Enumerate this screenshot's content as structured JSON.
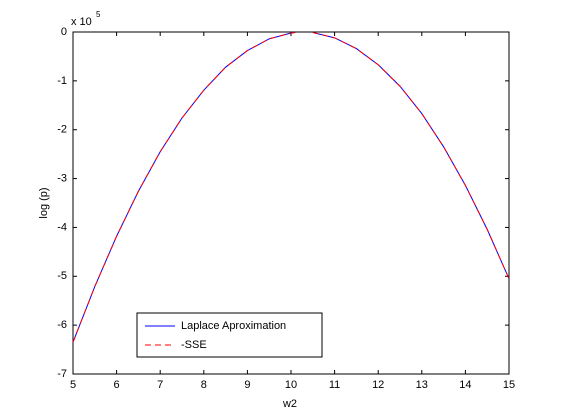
{
  "chart_data": {
    "type": "line",
    "xlabel": "w2",
    "ylabel": "log (p)",
    "y_multiplier_base": "x 10",
    "y_multiplier_exponent": "5",
    "x": [
      5,
      5.5,
      6,
      6.5,
      7,
      7.5,
      8,
      8.5,
      9,
      9.5,
      10,
      10.1,
      10.3,
      10.5,
      11,
      11.5,
      12,
      12.5,
      13,
      13.5,
      14,
      14.5,
      15
    ],
    "series": [
      {
        "name": "Laplace Aproximation",
        "color": "#0000ff",
        "dash": false,
        "values": [
          -6.35,
          -5.21,
          -4.18,
          -3.26,
          -2.45,
          -1.76,
          -1.19,
          -0.72,
          -0.38,
          -0.14,
          -0.02,
          -0.01,
          null,
          -0.01,
          -0.12,
          -0.34,
          -0.67,
          -1.11,
          -1.67,
          -2.35,
          -3.14,
          -4.04,
          -5.05
        ]
      },
      {
        "name": "-SSE",
        "color": "#ff0000",
        "dash": true,
        "values": [
          -6.35,
          -5.21,
          -4.18,
          -3.26,
          -2.45,
          -1.76,
          -1.19,
          -0.72,
          -0.38,
          -0.14,
          -0.02,
          -0.01,
          null,
          -0.01,
          -0.12,
          -0.34,
          -0.67,
          -1.11,
          -1.67,
          -2.35,
          -3.14,
          -4.04,
          -5.05
        ]
      }
    ],
    "xlim": [
      5,
      15
    ],
    "xticks": [
      5,
      6,
      7,
      8,
      9,
      10,
      11,
      12,
      13,
      14,
      15
    ],
    "ylim": [
      -7,
      0
    ],
    "yticks": [
      -7,
      -6,
      -5,
      -4,
      -3,
      -2,
      -1,
      0
    ],
    "grid": false,
    "legend": "lower left"
  }
}
